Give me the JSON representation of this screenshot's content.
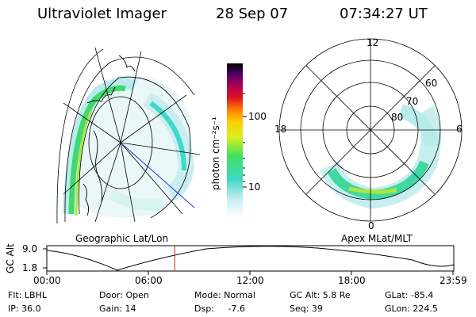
{
  "header": {
    "instrument": "Ultraviolet Imager",
    "date": "28 Sep 07",
    "time": "07:34:27 UT"
  },
  "left_panel": {
    "label": "Geographic Lat/Lon"
  },
  "right_panel": {
    "label": "Apex MLat/MLT",
    "mlt_labels": [
      "12",
      "18",
      "6",
      "0"
    ],
    "mlat_labels": [
      "60",
      "70",
      "80"
    ]
  },
  "colorbar": {
    "unit_label": "photon cm⁻²s⁻¹",
    "ticks": [
      "100",
      "10"
    ]
  },
  "altitude_plot": {
    "axis_label": "GC Alt",
    "y_ticks": [
      "9.0",
      "1.8"
    ],
    "x_ticks": [
      "00:00",
      "06:00",
      "12:00",
      "18:00",
      "23:59"
    ],
    "current_time_fraction": 0.315
  },
  "status": {
    "flt": "Flt: LBHL",
    "ip": "IP: 36.0",
    "door": "Door: Open",
    "gain": "Gain: 14",
    "mode": "Mode: Normal",
    "dsp": "Dsp:     -7.6",
    "gc_alt": "GC Alt: 5.8 Re",
    "seq": "Seq: 39",
    "glat": "GLat: -85.4",
    "glon": "GLon: 224.5"
  }
}
